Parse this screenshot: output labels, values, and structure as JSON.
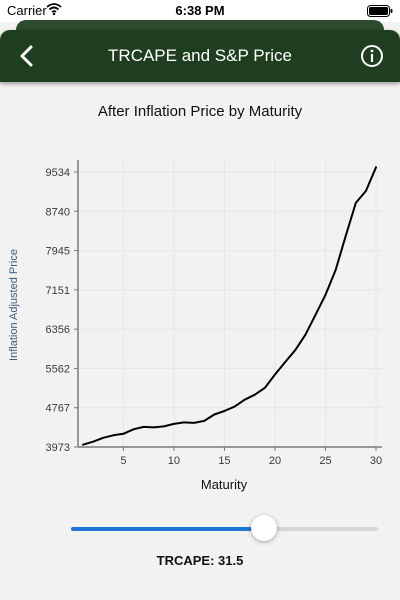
{
  "status_bar": {
    "carrier": "Carrier",
    "time": "6:38 PM"
  },
  "nav": {
    "title": "TRCAPE and S&P Price"
  },
  "chart_title": "After Inflation Price by Maturity",
  "slider": {
    "label": "TRCAPE: 31.5",
    "fraction": 0.63,
    "color": "#1f78d8"
  },
  "chart_data": {
    "type": "line",
    "xlabel": "Maturity",
    "ylabel": "Inflation Adjusted Price",
    "xlim": [
      1,
      30
    ],
    "ylim": [
      3973,
      9534
    ],
    "xticks": [
      5,
      10,
      15,
      20,
      25,
      30
    ],
    "yticks": [
      3973,
      4767,
      5562,
      6356,
      7151,
      7945,
      8740,
      9534
    ],
    "x": [
      1,
      2,
      3,
      4,
      5,
      6,
      7,
      8,
      9,
      10,
      11,
      12,
      13,
      14,
      15,
      16,
      17,
      18,
      19,
      20,
      21,
      22,
      23,
      24,
      25,
      26,
      27,
      28,
      29,
      30
    ],
    "y": [
      4020,
      4080,
      4160,
      4210,
      4240,
      4330,
      4380,
      4370,
      4390,
      4440,
      4470,
      4460,
      4500,
      4630,
      4700,
      4790,
      4930,
      5030,
      5170,
      5440,
      5690,
      5930,
      6240,
      6640,
      7050,
      7550,
      8240,
      8910,
      9150,
      9630
    ],
    "grid": true,
    "line_color": "#000000"
  }
}
